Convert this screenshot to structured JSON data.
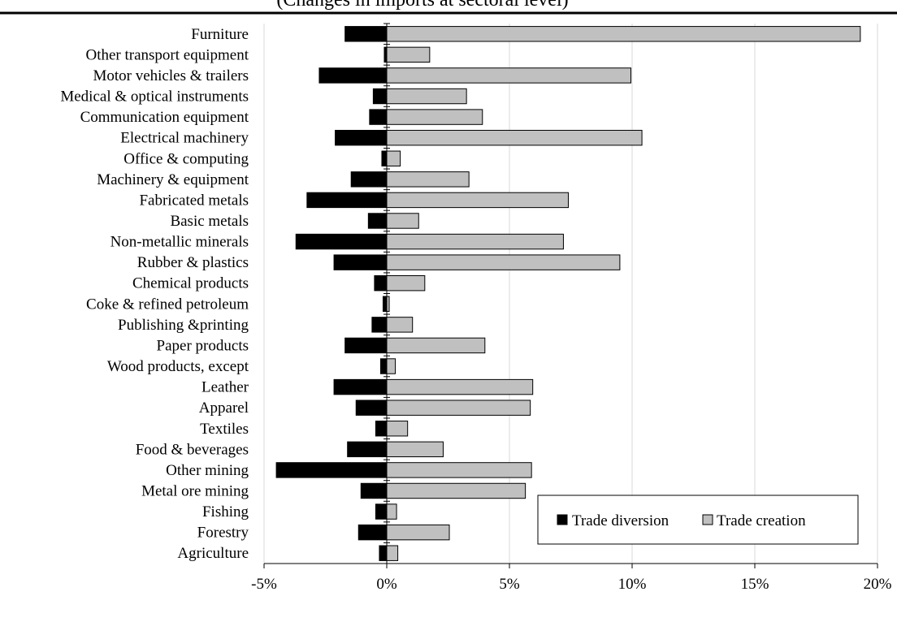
{
  "header": {
    "partial_caption": "(Changes in imports at sectoral level)"
  },
  "chart_data": {
    "type": "bar",
    "orientation": "horizontal",
    "categories": [
      "Furniture",
      "Other transport equipment",
      "Motor vehicles & trailers",
      "Medical & optical instruments",
      "Communication equipment",
      "Electrical machinery",
      "Office & computing",
      "Machinery & equipment",
      "Fabricated metals",
      "Basic metals",
      "Non-metallic minerals",
      "Rubber & plastics",
      "Chemical products",
      "Coke & refined petroleum",
      "Publishing &printing",
      "Paper products",
      "Wood products, except",
      "Leather",
      "Apparel",
      "Textiles",
      "Food & beverages",
      "Other mining",
      "Metal ore mining",
      "Fishing",
      "Forestry",
      "Agriculture"
    ],
    "series": [
      {
        "name": "Trade diversion",
        "color": "#000000",
        "values": [
          -1.7,
          -0.1,
          -2.75,
          -0.55,
          -0.7,
          -2.1,
          -0.2,
          -1.45,
          -3.25,
          -0.75,
          -3.7,
          -2.15,
          -0.5,
          -0.15,
          -0.6,
          -1.7,
          -0.25,
          -2.15,
          -1.25,
          -0.45,
          -1.6,
          -4.5,
          -1.05,
          -0.45,
          -1.15,
          -0.3
        ]
      },
      {
        "name": "Trade creation",
        "color": "#c0c0c0",
        "values": [
          19.3,
          1.75,
          9.95,
          3.25,
          3.9,
          10.4,
          0.55,
          3.35,
          7.4,
          1.3,
          7.2,
          9.5,
          1.55,
          0.1,
          1.05,
          4.0,
          0.35,
          5.95,
          5.85,
          0.85,
          2.3,
          5.9,
          5.65,
          0.4,
          2.55,
          0.45
        ]
      }
    ],
    "x_ticks": [
      "-5%",
      "0%",
      "5%",
      "10%",
      "15%",
      "20%"
    ],
    "xlim": [
      -5,
      20
    ],
    "grid": true,
    "legend_position": "bottom-right"
  }
}
